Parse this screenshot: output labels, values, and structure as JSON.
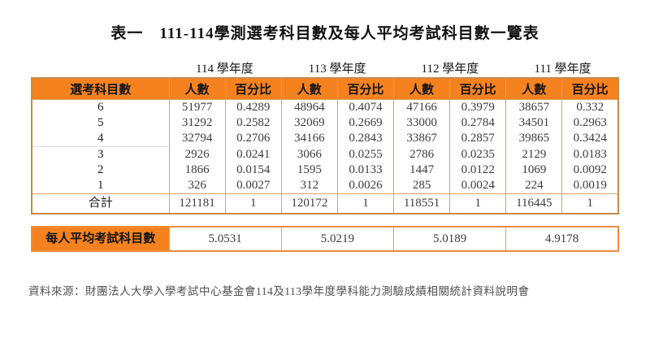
{
  "title": "表一　111-114學測選考科目數及每人平均考試科目數一覽表",
  "table": {
    "year_headers": [
      "114 學年度",
      "113 學年度",
      "112 學年度",
      "111 學年度"
    ],
    "row_header_label": "選考科目數",
    "sub_headers": [
      "人數",
      "百分比"
    ],
    "rows": [
      {
        "label": "6",
        "values": [
          "51977",
          "0.4289",
          "48964",
          "0.4074",
          "47166",
          "0.3979",
          "38657",
          "0.332"
        ]
      },
      {
        "label": "5",
        "values": [
          "31292",
          "0.2582",
          "32069",
          "0.2669",
          "33000",
          "0.2784",
          "34501",
          "0.2963"
        ]
      },
      {
        "label": "4",
        "values": [
          "32794",
          "0.2706",
          "34166",
          "0.2843",
          "33867",
          "0.2857",
          "39865",
          "0.3424"
        ]
      },
      {
        "label": "3",
        "values": [
          "2926",
          "0.0241",
          "3066",
          "0.0255",
          "2786",
          "0.0235",
          "2129",
          "0.0183"
        ]
      },
      {
        "label": "2",
        "values": [
          "1866",
          "0.0154",
          "1595",
          "0.0133",
          "1447",
          "0.0122",
          "1069",
          "0.0092"
        ]
      },
      {
        "label": "1",
        "values": [
          "326",
          "0.0027",
          "312",
          "0.0026",
          "285",
          "0.0024",
          "224",
          "0.0019"
        ]
      }
    ],
    "total_row": {
      "label": "合計",
      "values": [
        "121181",
        "1",
        "120172",
        "1",
        "118551",
        "1",
        "116445",
        "1"
      ]
    }
  },
  "average_table": {
    "label": "每人平均考試科目數",
    "values": [
      "5.0531",
      "5.0219",
      "5.0189",
      "4.9178"
    ]
  },
  "footer_note": "資料來源：財團法人大學入學考試中心基金會114及113學年度學科能力測驗成績相關統計資料說明會",
  "colors": {
    "header_orange": "#F5821E",
    "cell_border": "#DBA268",
    "table1_outer_border": "#C68A45",
    "table2_outer_border": "#EE8D3C"
  }
}
